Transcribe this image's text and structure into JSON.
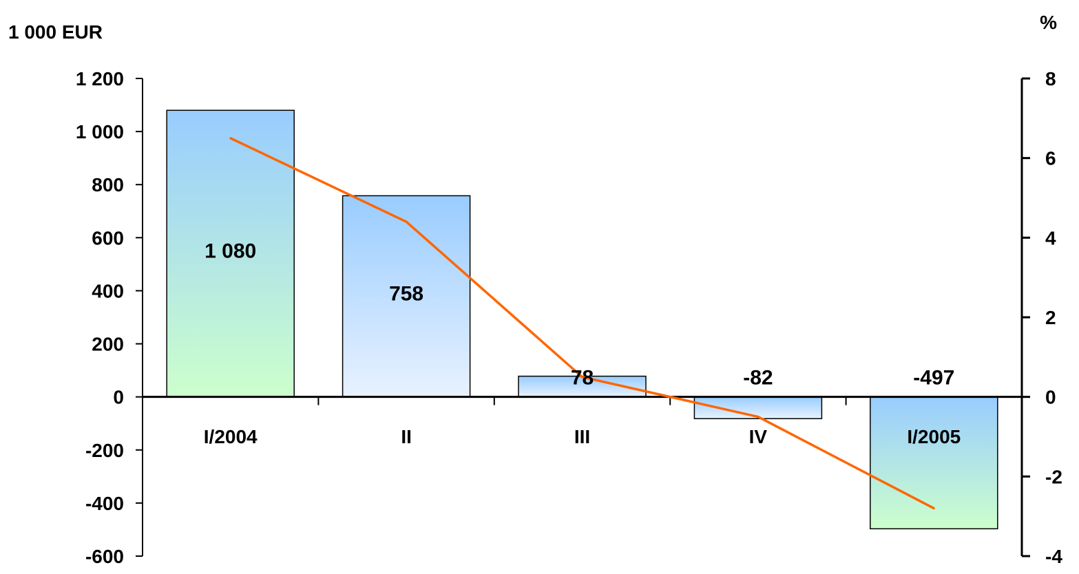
{
  "chart_data": {
    "type": "bar+line",
    "left_axis_unit": "1 000 EUR",
    "right_axis_unit": "%",
    "categories": [
      "I/2004",
      "II",
      "III",
      "IV",
      "I/2005"
    ],
    "left_ticks": [
      "1 200",
      "1 000",
      "800",
      "600",
      "400",
      "200",
      "0",
      "-200",
      "-400",
      "-600"
    ],
    "right_ticks": [
      "8",
      "6",
      "4",
      "2",
      "0",
      "-2",
      "-4"
    ],
    "ylim_left": [
      -600,
      1200
    ],
    "ylim_right": [
      -4,
      8
    ],
    "bars": {
      "values": [
        1080,
        758,
        78,
        -82,
        -497
      ],
      "labels": [
        "1 080",
        "758",
        "78",
        "-82",
        "-497"
      ],
      "fill_top": "#99ccff",
      "fill_bottom": "#ccffcc"
    },
    "line": {
      "values": [
        6.5,
        4.4,
        0.5,
        -0.5,
        -2.8
      ],
      "axis": "right",
      "color": "#ff6600"
    },
    "grid": false,
    "legend": "none"
  }
}
